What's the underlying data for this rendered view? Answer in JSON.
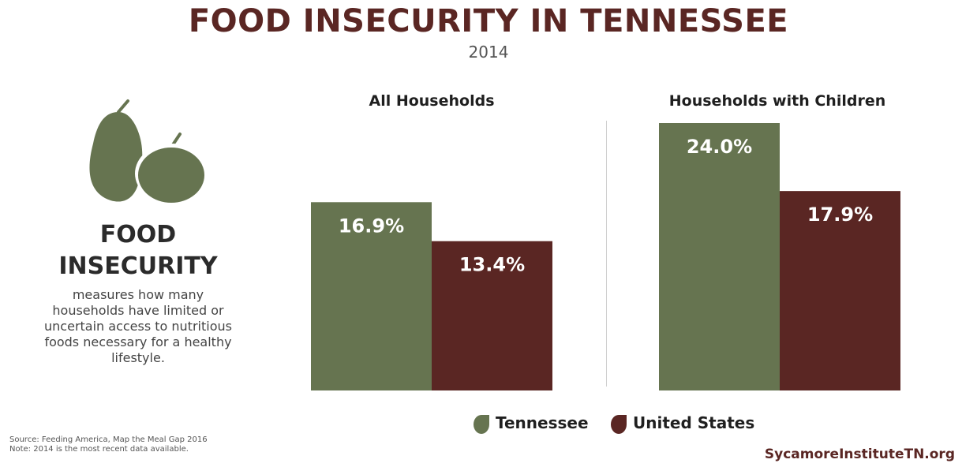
{
  "title": "FOOD INSECURITY IN TENNESSEE",
  "subtitle": "2014",
  "sidebar": {
    "heading_line1": "FOOD",
    "heading_line2": "INSECURITY",
    "description": "measures how many households have limited or uncertain access to nutritious foods necessary for a healthy lifestyle."
  },
  "footer": {
    "source_line1": "Source: Feeding America, Map the Meal Gap 2016",
    "source_line2": "Note: 2014 is the most recent data available.",
    "website": "SycamoreInstituteTN.org"
  },
  "colors": {
    "tennessee": "#667450",
    "united_states": "#5a2623",
    "icon": "#667450"
  },
  "icon_name": "pear-apple-icon",
  "chart_data": {
    "type": "bar",
    "title": "FOOD INSECURITY IN TENNESSEE",
    "subtitle": "2014",
    "categories": [
      "All Households",
      "Households with Children"
    ],
    "series": [
      {
        "name": "Tennessee",
        "values": [
          16.9,
          24.0
        ],
        "labels": [
          "16.9%",
          "24.0%"
        ],
        "color": "#667450"
      },
      {
        "name": "United States",
        "values": [
          13.4,
          17.9
        ],
        "labels": [
          "13.4%",
          "17.9%"
        ],
        "color": "#5a2623"
      }
    ],
    "ylim": [
      0,
      24.0
    ],
    "xlabel": "",
    "ylabel": "",
    "grid": false,
    "legend_position": "bottom"
  }
}
